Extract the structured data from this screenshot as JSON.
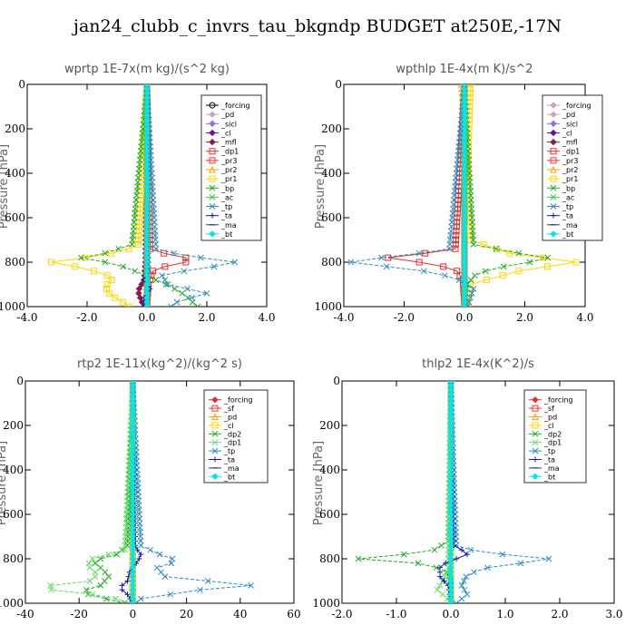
{
  "title": "jan24_clubb_c_invrs_tau_bkgndp  BUDGET at250E,-17N",
  "chart_data": [
    {
      "type": "line",
      "title": "wprtp  1E-7x(m kg)/(s^2 kg)",
      "ylabel": "Pressure [hPa]",
      "xlim": [
        -4,
        4
      ],
      "ylim": [
        1000,
        0
      ],
      "y_inverted": true,
      "xticks": [
        -4,
        -2,
        0,
        2,
        4
      ],
      "xtick_labels": [
        "-4.0",
        "-2.0",
        "0.0",
        "2.0",
        "4.0"
      ],
      "yticks": [
        0,
        200,
        400,
        600,
        800,
        1000
      ],
      "ytick_labels": [
        "0",
        "200",
        "400",
        "600",
        "800",
        "1000"
      ],
      "grid": false,
      "legend_placement": "top-right",
      "series": [
        {
          "name": "_forcing",
          "color": "#000000",
          "marker": "circle",
          "y": [
            0,
            1000
          ],
          "x": [
            0,
            0
          ]
        },
        {
          "name": "_pd",
          "color": "#c8a2c8",
          "marker": "diamond",
          "y": [
            0,
            1000
          ],
          "x": [
            0,
            0
          ]
        },
        {
          "name": "_sicl",
          "color": "#9370db",
          "marker": "diamond",
          "y": [
            0,
            1000
          ],
          "x": [
            0,
            0
          ]
        },
        {
          "name": "_cl",
          "color": "#6a0dad",
          "marker": "diamond",
          "y": [
            0,
            1000
          ],
          "x": [
            0,
            0
          ]
        },
        {
          "name": "_mfl",
          "color": "#8b1a4a",
          "marker": "diamond",
          "y": [
            0,
            800,
            880,
            930,
            970,
            1000
          ],
          "x": [
            0,
            -0.05,
            -0.1,
            -0.3,
            -0.2,
            -0.1
          ]
        },
        {
          "name": "_dp1",
          "color": "#e03030",
          "marker": "square",
          "y": [
            0,
            740,
            770,
            790,
            810,
            840,
            900,
            1000
          ],
          "x": [
            0,
            0.1,
            0.8,
            1.8,
            0.8,
            0.2,
            0.05,
            0
          ]
        },
        {
          "name": "_pr3",
          "color": "#ff3030",
          "marker": "square",
          "y": [
            0,
            1000
          ],
          "x": [
            0,
            0
          ]
        },
        {
          "name": "_pr2",
          "color": "#ffa500",
          "marker": "triangle",
          "y": [
            0,
            1000
          ],
          "x": [
            0,
            0
          ]
        },
        {
          "name": "_pr1",
          "color": "#ffd700",
          "marker": "square",
          "y": [
            0,
            730,
            770,
            800,
            830,
            870,
            910,
            950,
            980,
            1000
          ],
          "x": [
            0,
            -0.3,
            -1.5,
            -3.2,
            -2.0,
            -1.1,
            -1.4,
            -1.2,
            -0.8,
            -0.6
          ]
        },
        {
          "name": "_bp",
          "color": "#22aa22",
          "marker": "x",
          "y": [
            0,
            720,
            760,
            780,
            810,
            850,
            880,
            910,
            950,
            990,
            1000
          ],
          "x": [
            0,
            -0.5,
            -1.4,
            -2.2,
            -1.0,
            -0.2,
            0.3,
            0.8,
            1.3,
            1.6,
            1.7
          ]
        },
        {
          "name": "_ac",
          "color": "#44cc44",
          "marker": "x",
          "y": [
            0,
            1000
          ],
          "x": [
            0,
            0
          ]
        },
        {
          "name": "_tp",
          "color": "#2e8bc0",
          "marker": "x",
          "y": [
            0,
            740,
            770,
            790,
            805,
            830,
            860,
            900,
            940,
            980,
            1000
          ],
          "x": [
            0,
            0.3,
            1.2,
            2.4,
            3.2,
            1.6,
            0.5,
            0.7,
            2.0,
            1.0,
            0.8
          ]
        },
        {
          "name": "_ta",
          "color": "#1a1aa0",
          "marker": "plus",
          "y": [
            0,
            850,
            880,
            920,
            960,
            1000
          ],
          "x": [
            0,
            0.05,
            -0.1,
            0.1,
            -0.1,
            -0.1
          ]
        },
        {
          "name": "_ma",
          "color": "#1a3a8a",
          "marker": "dash",
          "y": [
            0,
            1000
          ],
          "x": [
            0,
            0
          ]
        },
        {
          "name": "_bt",
          "color": "#00e5ee",
          "marker": "diamond",
          "y": [
            0,
            1000
          ],
          "x": [
            0,
            0
          ]
        }
      ]
    },
    {
      "type": "line",
      "title": "wpthlp  1E-4x(m K)/s^2",
      "ylabel": "Pressure [hPa]",
      "xlim": [
        -4,
        4
      ],
      "ylim": [
        1000,
        0
      ],
      "y_inverted": true,
      "xticks": [
        -4,
        -2,
        0,
        2,
        4
      ],
      "xtick_labels": [
        "-4.0",
        "-2.0",
        "0.0",
        "2.0",
        "4.0"
      ],
      "yticks": [
        0,
        200,
        400,
        600,
        800,
        1000
      ],
      "ytick_labels": [
        "0",
        "200",
        "400",
        "600",
        "800",
        "1000"
      ],
      "grid": false,
      "legend_placement": "top-right",
      "series": [
        {
          "name": "_forcing",
          "color": "#c8a2c8",
          "marker": "diamond",
          "y": [
            0,
            1000
          ],
          "x": [
            0,
            0
          ]
        },
        {
          "name": "_pd",
          "color": "#c8a2c8",
          "marker": "diamond",
          "y": [
            0,
            1000
          ],
          "x": [
            0,
            0
          ]
        },
        {
          "name": "_sicl",
          "color": "#9370db",
          "marker": "diamond",
          "y": [
            0,
            1000
          ],
          "x": [
            0,
            0
          ]
        },
        {
          "name": "_cl",
          "color": "#6a0dad",
          "marker": "diamond",
          "y": [
            0,
            1000
          ],
          "x": [
            0,
            0
          ]
        },
        {
          "name": "_mfl",
          "color": "#8b1a4a",
          "marker": "diamond",
          "y": [
            0,
            1000
          ],
          "x": [
            0,
            0
          ]
        },
        {
          "name": "_dp1",
          "color": "#e03030",
          "marker": "square",
          "y": [
            0,
            740,
            770,
            785,
            800,
            830,
            880,
            1000
          ],
          "x": [
            0,
            -0.3,
            -1.8,
            -2.9,
            -1.5,
            -0.3,
            -0.05,
            0
          ]
        },
        {
          "name": "_pr3",
          "color": "#ff3030",
          "marker": "square",
          "y": [
            0,
            1000
          ],
          "x": [
            0,
            0
          ]
        },
        {
          "name": "_pr2",
          "color": "#ffa500",
          "marker": "triangle",
          "y": [
            0,
            100,
            300,
            600,
            1000
          ],
          "x": [
            -0.1,
            -0.05,
            0,
            0,
            0
          ]
        },
        {
          "name": "_pr1",
          "color": "#ffd700",
          "marker": "square",
          "y": [
            0,
            200,
            500,
            700,
            760,
            800,
            840,
            900,
            1000
          ],
          "x": [
            0.2,
            0.15,
            0.1,
            0.2,
            1.5,
            3.7,
            1.8,
            0.2,
            0.1
          ]
        },
        {
          "name": "_bp",
          "color": "#22aa22",
          "marker": "x",
          "y": [
            0,
            720,
            760,
            785,
            810,
            850,
            900,
            1000
          ],
          "x": [
            0,
            0.3,
            1.8,
            3.0,
            1.6,
            0.4,
            0.1,
            0
          ]
        },
        {
          "name": "_ac",
          "color": "#44cc44",
          "marker": "x",
          "y": [
            0,
            1000
          ],
          "x": [
            0,
            0
          ]
        },
        {
          "name": "_tp",
          "color": "#2e8bc0",
          "marker": "x",
          "y": [
            0,
            740,
            770,
            790,
            805,
            830,
            870,
            920,
            1000
          ],
          "x": [
            0,
            -0.5,
            -2.0,
            -3.5,
            -3.9,
            -1.7,
            -0.3,
            0.3,
            0.1
          ]
        },
        {
          "name": "_ta",
          "color": "#1a1aa0",
          "marker": "plus",
          "y": [
            0,
            1000
          ],
          "x": [
            0,
            0
          ]
        },
        {
          "name": "_ma",
          "color": "#1a3a8a",
          "marker": "dash",
          "y": [
            0,
            1000
          ],
          "x": [
            0,
            0
          ]
        },
        {
          "name": "_bt",
          "color": "#00e5ee",
          "marker": "diamond",
          "y": [
            0,
            1000
          ],
          "x": [
            0,
            0
          ]
        }
      ]
    },
    {
      "type": "line",
      "title": "rtp2  1E-11x(kg^2)/(kg^2 s)",
      "ylabel": "Pressure [hPa]",
      "xlim": [
        -40,
        60
      ],
      "ylim": [
        1000,
        0
      ],
      "y_inverted": true,
      "xticks": [
        -40,
        -20,
        0,
        20,
        40,
        60
      ],
      "xtick_labels": [
        "-40",
        "-20",
        "0",
        "20",
        "40",
        "60"
      ],
      "yticks": [
        0,
        200,
        400,
        600,
        800,
        1000
      ],
      "ytick_labels": [
        "0",
        "200",
        "400",
        "600",
        "800",
        "1000"
      ],
      "grid": false,
      "legend_placement": "top-right",
      "series": [
        {
          "name": "_forcing",
          "color": "#e03030",
          "marker": "diamond",
          "y": [
            0,
            1000
          ],
          "x": [
            0,
            0
          ]
        },
        {
          "name": "_sf",
          "color": "#ff3030",
          "marker": "square",
          "y": [
            0,
            1000
          ],
          "x": [
            0,
            0
          ]
        },
        {
          "name": "_pd",
          "color": "#ffa500",
          "marker": "triangle",
          "y": [
            0,
            1000
          ],
          "x": [
            0,
            0
          ]
        },
        {
          "name": "_cl",
          "color": "#ffd700",
          "marker": "square",
          "y": [
            0,
            1000
          ],
          "x": [
            0,
            0
          ]
        },
        {
          "name": "_dp2",
          "color": "#22aa22",
          "marker": "x",
          "y": [
            0,
            740,
            780,
            810,
            850,
            880,
            920,
            950,
            1000
          ],
          "x": [
            0,
            -2,
            -6,
            -15,
            -11,
            -9,
            -12,
            -20,
            -3
          ]
        },
        {
          "name": "_dp1",
          "color": "#66dd66",
          "marker": "x",
          "y": [
            0,
            760,
            800,
            830,
            870,
            900,
            930,
            960,
            990,
            1000
          ],
          "x": [
            0,
            -3,
            -15,
            -17,
            -13,
            -16,
            -38,
            -15,
            -2,
            0
          ]
        },
        {
          "name": "_tp",
          "color": "#2e8bc0",
          "marker": "x",
          "y": [
            0,
            740,
            780,
            810,
            840,
            880,
            920,
            940,
            980,
            1000
          ],
          "x": [
            0,
            3,
            10,
            17,
            9,
            12,
            44,
            25,
            3,
            1
          ]
        },
        {
          "name": "_ta",
          "color": "#1a1aa0",
          "marker": "plus",
          "y": [
            0,
            750,
            780,
            810,
            850,
            900,
            930,
            960,
            1000
          ],
          "x": [
            0,
            1,
            3,
            2,
            -1,
            -2,
            -5,
            -2,
            0
          ]
        },
        {
          "name": "_ma",
          "color": "#1a3a8a",
          "marker": "dash",
          "y": [
            0,
            1000
          ],
          "x": [
            0,
            0
          ]
        },
        {
          "name": "_bt",
          "color": "#00e5ee",
          "marker": "diamond",
          "y": [
            0,
            1000
          ],
          "x": [
            0,
            0
          ]
        }
      ]
    },
    {
      "type": "line",
      "title": "thlp2  1E-4x(K^2)/s",
      "ylabel": "Pressure [hPa]",
      "xlim": [
        -2,
        3
      ],
      "ylim": [
        1000,
        0
      ],
      "y_inverted": true,
      "xticks": [
        -2,
        -1,
        0,
        1,
        2,
        3
      ],
      "xtick_labels": [
        "-2.0",
        "-1.0",
        "0.0",
        "1.0",
        "2.0",
        "3.0"
      ],
      "yticks": [
        0,
        200,
        400,
        600,
        800,
        1000
      ],
      "ytick_labels": [
        "0",
        "200",
        "400",
        "600",
        "800",
        "1000"
      ],
      "grid": false,
      "legend_placement": "top-right",
      "series": [
        {
          "name": "_forcing",
          "color": "#e03030",
          "marker": "diamond",
          "y": [
            0,
            1000
          ],
          "x": [
            0,
            0
          ]
        },
        {
          "name": "_sf",
          "color": "#ff3030",
          "marker": "square",
          "y": [
            0,
            1000
          ],
          "x": [
            0,
            0
          ]
        },
        {
          "name": "_pd",
          "color": "#ffa500",
          "marker": "triangle",
          "y": [
            0,
            1000
          ],
          "x": [
            0,
            0
          ]
        },
        {
          "name": "_cl",
          "color": "#ffd700",
          "marker": "square",
          "y": [
            0,
            1000
          ],
          "x": [
            0,
            0
          ]
        },
        {
          "name": "_dp2",
          "color": "#22aa22",
          "marker": "x",
          "y": [
            0,
            720,
            760,
            785,
            800,
            820,
            850,
            900,
            1000
          ],
          "x": [
            0,
            -0.05,
            -0.3,
            -1.0,
            -1.7,
            -0.6,
            -0.1,
            0,
            0
          ]
        },
        {
          "name": "_dp1",
          "color": "#66dd66",
          "marker": "x",
          "y": [
            0,
            850,
            900,
            940,
            970,
            1000
          ],
          "x": [
            0,
            -0.05,
            -0.15,
            -0.25,
            -0.1,
            0
          ]
        },
        {
          "name": "_tp",
          "color": "#2e8bc0",
          "marker": "x",
          "y": [
            0,
            740,
            770,
            790,
            805,
            830,
            870,
            920,
            960,
            1000
          ],
          "x": [
            0,
            0.1,
            0.5,
            1.4,
            2.0,
            0.8,
            0.3,
            0.2,
            0.3,
            0.1
          ]
        },
        {
          "name": "_ta",
          "color": "#1a1aa0",
          "marker": "plus",
          "y": [
            0,
            740,
            760,
            780,
            800,
            830,
            880,
            920,
            1000
          ],
          "x": [
            0,
            0.05,
            0.2,
            0.3,
            0.1,
            -0.2,
            -0.2,
            -0.05,
            0
          ]
        },
        {
          "name": "_ma",
          "color": "#1a3a8a",
          "marker": "dash",
          "y": [
            0,
            1000
          ],
          "x": [
            0,
            0
          ]
        },
        {
          "name": "_bt",
          "color": "#00e5ee",
          "marker": "diamond",
          "y": [
            0,
            1000
          ],
          "x": [
            0,
            0
          ]
        }
      ]
    }
  ]
}
